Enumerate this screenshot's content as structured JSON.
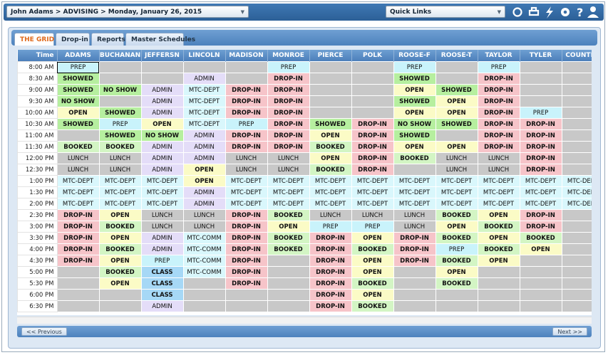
{
  "header": {
    "breadcrumb": "John Adams > ADVISING > Monday, January 26, 2015",
    "quick_links": "Quick Links"
  },
  "tabs": [
    "THE GRID",
    "Drop-in",
    "Reports",
    "Master Schedules"
  ],
  "grid": {
    "columns": [
      "Time",
      "ADAMS",
      "BUCHANAN",
      "JEFFERSN",
      "LINCOLN",
      "MADISON",
      "MONROE",
      "PIERCE",
      "POLK",
      "ROOSE-F",
      "ROOSE-T",
      "TAYLOR",
      "TYLER",
      "COUNTER"
    ],
    "status_styles": {
      "PREP": {
        "color": "#c9f3fb",
        "bold": false
      },
      "SHOWED": {
        "color": "#b6ef9f",
        "bold": true
      },
      "NO SHOW": {
        "color": "#b6ef9f",
        "bold": true
      },
      "OPEN": {
        "color": "#fbfbc6",
        "bold": true
      },
      "ADMIN": {
        "color": "#e4ddf8",
        "bold": false
      },
      "MTC-DEPT": {
        "color": "#d9f7fc",
        "bold": false
      },
      "MTC-COMM": {
        "color": "#d9f7fc",
        "bold": false
      },
      "DROP-IN": {
        "color": "#f6c4c9",
        "bold": true
      },
      "BOOKED": {
        "color": "#d3f5c4",
        "bold": true
      },
      "LUNCH": {
        "color": "#c8c8c8",
        "bold": false
      },
      "CLASS": {
        "color": "#a6d8f6",
        "bold": true
      }
    },
    "rows": [
      {
        "time": "8:00 AM",
        "cells": [
          "PREP",
          null,
          null,
          null,
          null,
          "PREP",
          null,
          null,
          "PREP",
          null,
          "PREP",
          null,
          null
        ]
      },
      {
        "time": "8:30 AM",
        "cells": [
          "SHOWED",
          null,
          null,
          "ADMIN",
          null,
          "DROP-IN",
          null,
          null,
          "SHOWED",
          null,
          "DROP-IN",
          null,
          null
        ]
      },
      {
        "time": "9:00 AM",
        "cells": [
          "SHOWED",
          "NO SHOW",
          "ADMIN",
          "MTC-DEPT",
          "DROP-IN",
          "DROP-IN",
          null,
          null,
          "OPEN",
          "SHOWED",
          "DROP-IN",
          null,
          null
        ]
      },
      {
        "time": "9:30 AM",
        "cells": [
          "NO SHOW",
          null,
          "ADMIN",
          "MTC-DEPT",
          "DROP-IN",
          "DROP-IN",
          null,
          null,
          "SHOWED",
          "OPEN",
          "DROP-IN",
          null,
          null
        ]
      },
      {
        "time": "10:00 AM",
        "cells": [
          "OPEN",
          "SHOWED",
          "ADMIN",
          "MTC-DEPT",
          "DROP-IN",
          "DROP-IN",
          null,
          null,
          "OPEN",
          "OPEN",
          "DROP-IN",
          "PREP",
          null
        ]
      },
      {
        "time": "10:30 AM",
        "cells": [
          "SHOWED",
          "PREP",
          "OPEN",
          "MTC-DEPT",
          "PREP",
          "DROP-IN",
          "SHOWED",
          "DROP-IN",
          "NO SHOW",
          "SHOWED",
          "DROP-IN",
          "DROP-IN",
          null
        ]
      },
      {
        "time": "11:00 AM",
        "cells": [
          null,
          "SHOWED",
          "NO SHOW",
          "ADMIN",
          "DROP-IN",
          "DROP-IN",
          "OPEN",
          "DROP-IN",
          "SHOWED",
          null,
          "DROP-IN",
          "DROP-IN",
          null
        ]
      },
      {
        "time": "11:30 AM",
        "cells": [
          "BOOKED",
          "BOOKED",
          "ADMIN",
          "ADMIN",
          "DROP-IN",
          "DROP-IN",
          "BOOKED",
          "DROP-IN",
          "OPEN",
          "OPEN",
          "DROP-IN",
          "DROP-IN",
          null
        ]
      },
      {
        "time": "12:00 PM",
        "cells": [
          "LUNCH",
          "LUNCH",
          "ADMIN",
          "ADMIN",
          "LUNCH",
          "LUNCH",
          "OPEN",
          "DROP-IN",
          "BOOKED",
          "LUNCH",
          "LUNCH",
          "DROP-IN",
          null
        ]
      },
      {
        "time": "12:30 PM",
        "cells": [
          "LUNCH",
          "LUNCH",
          "ADMIN",
          "OPEN",
          "LUNCH",
          "LUNCH",
          "BOOKED",
          "DROP-IN",
          null,
          "LUNCH",
          "LUNCH",
          "DROP-IN",
          null
        ]
      },
      {
        "time": "1:00 PM",
        "cells": [
          "MTC-DEPT",
          "MTC-DEPT",
          "MTC-DEPT",
          "OPEN",
          "MTC-DEPT",
          "MTC-DEPT",
          "MTC-DEPT",
          "MTC-DEPT",
          "MTC-DEPT",
          "MTC-DEPT",
          "MTC-DEPT",
          "MTC-DEPT",
          "MTC-DEPT"
        ]
      },
      {
        "time": "1:30 PM",
        "cells": [
          "MTC-DEPT",
          "MTC-DEPT",
          "MTC-DEPT",
          "ADMIN",
          "MTC-DEPT",
          "MTC-DEPT",
          "MTC-DEPT",
          "MTC-DEPT",
          "MTC-DEPT",
          "MTC-DEPT",
          "MTC-DEPT",
          "MTC-DEPT",
          "MTC-DEPT"
        ]
      },
      {
        "time": "2:00 PM",
        "cells": [
          "MTC-DEPT",
          "MTC-DEPT",
          "MTC-DEPT",
          "ADMIN",
          "MTC-DEPT",
          "MTC-DEPT",
          "MTC-DEPT",
          "MTC-DEPT",
          "MTC-DEPT",
          "MTC-DEPT",
          "MTC-DEPT",
          "MTC-DEPT",
          "MTC-DEPT"
        ]
      },
      {
        "time": "2:30 PM",
        "cells": [
          "DROP-IN",
          "OPEN",
          "LUNCH",
          "LUNCH",
          "DROP-IN",
          "BOOKED",
          "LUNCH",
          "LUNCH",
          "LUNCH",
          "BOOKED",
          "OPEN",
          "DROP-IN",
          null
        ]
      },
      {
        "time": "3:00 PM",
        "cells": [
          "DROP-IN",
          "BOOKED",
          "LUNCH",
          "LUNCH",
          "DROP-IN",
          "OPEN",
          "PREP",
          "PREP",
          "LUNCH",
          "OPEN",
          "BOOKED",
          "DROP-IN",
          null
        ]
      },
      {
        "time": "3:30 PM",
        "cells": [
          "DROP-IN",
          "OPEN",
          "ADMIN",
          "MTC-COMM",
          "DROP-IN",
          "BOOKED",
          "DROP-IN",
          "OPEN",
          "DROP-IN",
          "BOOKED",
          "OPEN",
          "BOOKED",
          null
        ]
      },
      {
        "time": "4:00 PM",
        "cells": [
          "DROP-IN",
          "BOOKED",
          "ADMIN",
          "MTC-COMM",
          "DROP-IN",
          "BOOKED",
          "DROP-IN",
          "BOOKED",
          "DROP-IN",
          "PREP",
          "BOOKED",
          "OPEN",
          null
        ]
      },
      {
        "time": "4:30 PM",
        "cells": [
          "DROP-IN",
          "OPEN",
          "PREP",
          "MTC-COMM",
          "DROP-IN",
          null,
          "DROP-IN",
          "OPEN",
          "DROP-IN",
          "BOOKED",
          "OPEN",
          null,
          null
        ]
      },
      {
        "time": "5:00 PM",
        "cells": [
          null,
          "BOOKED",
          "CLASS",
          "MTC-COMM",
          "DROP-IN",
          null,
          "DROP-IN",
          "OPEN",
          null,
          "OPEN",
          null,
          null,
          null
        ]
      },
      {
        "time": "5:30 PM",
        "cells": [
          null,
          "OPEN",
          "CLASS",
          null,
          "DROP-IN",
          null,
          "DROP-IN",
          "BOOKED",
          null,
          "BOOKED",
          null,
          null,
          null
        ]
      },
      {
        "time": "6:00 PM",
        "cells": [
          null,
          null,
          "CLASS",
          null,
          null,
          null,
          "DROP-IN",
          "OPEN",
          null,
          null,
          null,
          null,
          null
        ]
      },
      {
        "time": "6:30 PM",
        "cells": [
          null,
          null,
          "ADMIN",
          null,
          null,
          null,
          "DROP-IN",
          "BOOKED",
          null,
          null,
          null,
          null,
          null
        ]
      }
    ]
  },
  "pager": {
    "previous": "<< Previous",
    "next": "Next >>"
  }
}
